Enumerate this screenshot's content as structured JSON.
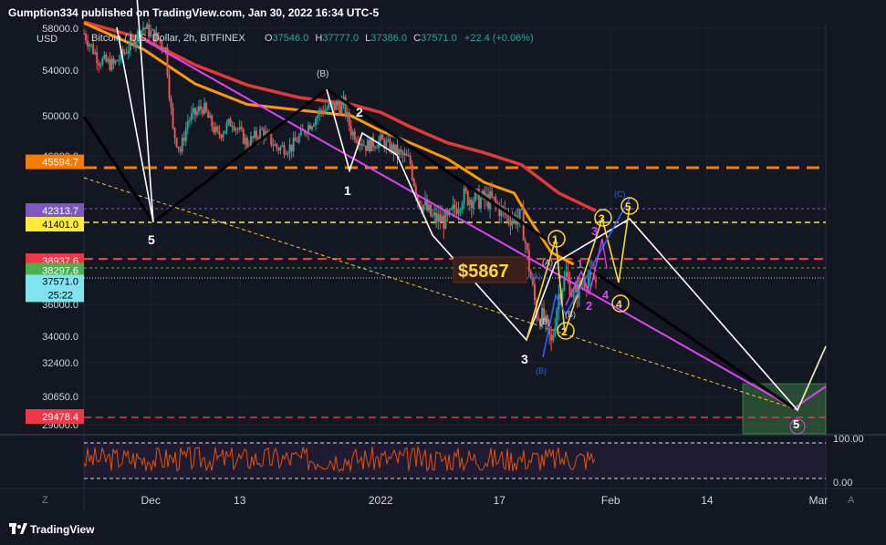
{
  "header": {
    "publisher_line": "Gumption334 published on TradingView.com, Jan 30, 2022 16:34 UTC-5"
  },
  "legend": {
    "symbol": "Bitcoin / U.S. Dollar, 2h, BITFINEX",
    "o_label": "O",
    "o_value": "37546.0",
    "h_label": "H",
    "h_value": "37777.0",
    "l_label": "L",
    "l_value": "37386.0",
    "c_label": "C",
    "c_value": "37571.0",
    "change": "+22.4 (+0.06%)",
    "currency": "USD"
  },
  "price_axis": {
    "ticks": [
      {
        "label": "58000.0",
        "value": 58000
      },
      {
        "label": "54000.0",
        "value": 54000
      },
      {
        "label": "50000.0",
        "value": 50000
      },
      {
        "label": "46000.0",
        "value": 46000
      },
      {
        "label": "36000.0",
        "value": 36000
      },
      {
        "label": "34000.0",
        "value": 34000
      },
      {
        "label": "32400.0",
        "value": 32400
      },
      {
        "label": "30650.0",
        "value": 30650
      },
      {
        "label": "29000.0",
        "value": 29000
      }
    ],
    "badges": [
      {
        "label": "45594.7",
        "value": 45594.7,
        "color": "#f57c00",
        "text_color": "#ffffff"
      },
      {
        "label": "42313.7",
        "value": 42313.7,
        "color": "#7e57c2",
        "text_color": "#ffffff"
      },
      {
        "label": "41401.0",
        "value": 41401.0,
        "color": "#ffeb3b",
        "text_color": "#000000"
      },
      {
        "label": "38937.6",
        "value": 38937.6,
        "color": "#f23645",
        "text_color": "#ffffff"
      },
      {
        "label": "38297.6",
        "value": 38297.6,
        "color": "#4caf50",
        "text_color": "#ffffff"
      },
      {
        "label": "29478.4",
        "value": 29478.4,
        "color": "#f23645",
        "text_color": "#ffffff"
      }
    ],
    "last_price": {
      "label": "37571.0",
      "countdown": "25:22",
      "value": 37571.0,
      "color": "#7fe3f0"
    }
  },
  "oscillator_axis": {
    "ticks": [
      {
        "label": "100.00",
        "value": 100
      },
      {
        "label": "0.00",
        "value": 0
      }
    ]
  },
  "time_axis": {
    "ticks": [
      {
        "label": "Dec",
        "value": "2021-12-01"
      },
      {
        "label": "13",
        "value": "2021-12-13"
      },
      {
        "label": "2022",
        "value": "2022-01-01"
      },
      {
        "label": "17",
        "value": "2022-01-17"
      },
      {
        "label": "Feb",
        "value": "2022-02-01"
      },
      {
        "label": "14",
        "value": "2022-02-14"
      },
      {
        "label": "Mar",
        "value": "2022-03-01"
      }
    ],
    "left_button": "Z",
    "right_button": "A"
  },
  "chart_data": {
    "type": "line",
    "symbol": "BTCUSD",
    "timeframe": "2h",
    "xlim": [
      "2021-11-22",
      "2022-03-02"
    ],
    "ylim": [
      29000,
      58800
    ],
    "moving_averages": [
      {
        "color": "#e53935",
        "points": [
          [
            "2021-11-22",
            58600
          ],
          [
            "2021-11-30",
            57000
          ],
          [
            "2021-12-07",
            54500
          ],
          [
            "2021-12-14",
            52700
          ],
          [
            "2021-12-21",
            51600
          ],
          [
            "2021-12-28",
            51000
          ],
          [
            "2022-01-01",
            50300
          ],
          [
            "2022-01-05",
            48900
          ],
          [
            "2022-01-10",
            47300
          ],
          [
            "2022-01-15",
            46300
          ],
          [
            "2022-01-20",
            45400
          ],
          [
            "2022-01-25",
            43500
          ],
          [
            "2022-01-30",
            42300
          ]
        ]
      },
      {
        "color": "#ff9800",
        "points": [
          [
            "2021-11-22",
            58500
          ],
          [
            "2021-11-30",
            56000
          ],
          [
            "2021-12-07",
            52800
          ],
          [
            "2021-12-14",
            51000
          ],
          [
            "2021-12-21",
            50500
          ],
          [
            "2021-12-28",
            50000
          ],
          [
            "2022-01-01",
            48500
          ],
          [
            "2022-01-05",
            47300
          ],
          [
            "2022-01-10",
            45800
          ],
          [
            "2022-01-15",
            44200
          ],
          [
            "2022-01-19",
            43500
          ],
          [
            "2022-01-21",
            41800
          ],
          [
            "2022-01-24",
            39500
          ],
          [
            "2022-01-27",
            38700
          ]
        ]
      }
    ],
    "price_path": [
      [
        "2021-11-22",
        57500
      ],
      [
        "2021-11-24",
        55000
      ],
      [
        "2021-11-26",
        54500
      ],
      [
        "2021-11-28",
        56200
      ],
      [
        "2021-11-30",
        58100
      ],
      [
        "2021-12-02",
        57000
      ],
      [
        "2021-12-03",
        56000
      ],
      [
        "2021-12-04",
        48500
      ],
      [
        "2021-12-05",
        46500
      ],
      [
        "2021-12-06",
        49500
      ],
      [
        "2021-12-08",
        50800
      ],
      [
        "2021-12-10",
        48000
      ],
      [
        "2021-12-12",
        49500
      ],
      [
        "2021-12-14",
        47200
      ],
      [
        "2021-12-16",
        48500
      ],
      [
        "2021-12-18",
        46800
      ],
      [
        "2021-12-20",
        46900
      ],
      [
        "2021-12-22",
        48800
      ],
      [
        "2021-12-24",
        50500
      ],
      [
        "2021-12-27",
        51000
      ],
      [
        "2021-12-28",
        48500
      ],
      [
        "2021-12-30",
        47000
      ],
      [
        "2022-01-01",
        47500
      ],
      [
        "2022-01-03",
        46500
      ],
      [
        "2022-01-05",
        45500
      ],
      [
        "2022-01-06",
        43200
      ],
      [
        "2022-01-08",
        41800
      ],
      [
        "2022-01-10",
        41600
      ],
      [
        "2022-01-12",
        43300
      ],
      [
        "2022-01-14",
        43100
      ],
      [
        "2022-01-16",
        43000
      ],
      [
        "2022-01-18",
        41900
      ],
      [
        "2022-01-20",
        41800
      ],
      [
        "2022-01-21",
        38500
      ],
      [
        "2022-01-22",
        35500
      ],
      [
        "2022-01-23",
        35000
      ],
      [
        "2022-01-24",
        33500
      ],
      [
        "2022-01-25",
        36700
      ],
      [
        "2022-01-26",
        38000
      ],
      [
        "2022-01-27",
        36500
      ],
      [
        "2022-01-28",
        37400
      ],
      [
        "2022-01-29",
        37900
      ],
      [
        "2022-01-30",
        37571
      ]
    ],
    "oscillator": {
      "range": [
        0,
        100
      ],
      "color": "#e65100",
      "band_color": "#7e57c2"
    },
    "annotations": {
      "price_box": "$5867",
      "white_wave_labels": [
        "5",
        "1",
        "2",
        "3",
        "5"
      ],
      "black_wave_labels": [
        "(B)"
      ],
      "yellow_wave_labels": [
        "1",
        "2",
        "3",
        "4",
        "5"
      ],
      "magenta_wave_labels": [
        "1",
        "2",
        "3",
        "4"
      ],
      "blue_wave_labels": [
        "(A)",
        "(B)",
        "(C)"
      ],
      "sub_labels": [
        "(A)",
        "(B)",
        "(B)"
      ]
    }
  }
}
